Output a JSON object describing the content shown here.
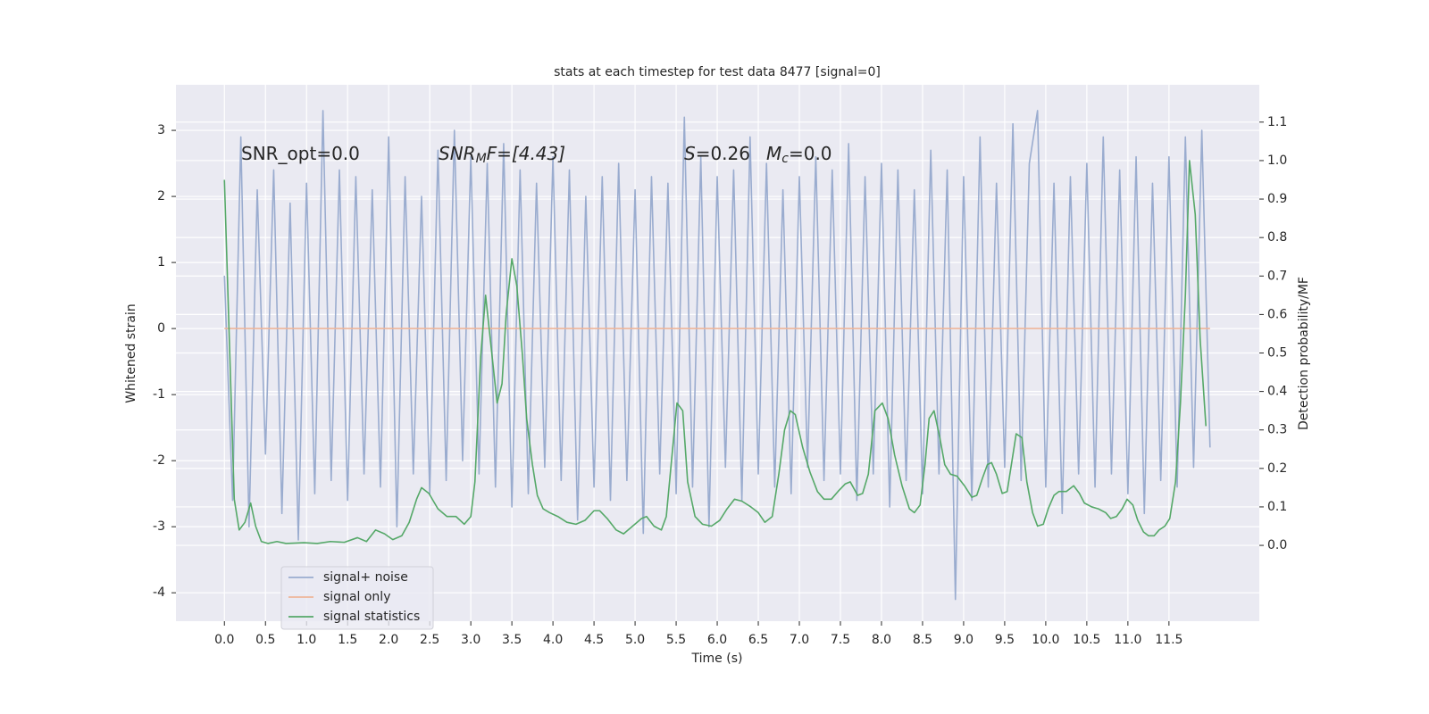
{
  "chart_data": {
    "type": "line",
    "title": "stats at each timestep for test data 8477 [signal=0]",
    "xlabel": "Time (s)",
    "ylabel": "Whitened strain",
    "y2label": "Detection probability/MF",
    "annotations": [
      {
        "parts": [
          "SNR_opt=0.0"
        ]
      },
      {
        "parts": [
          "SNR",
          "M",
          "F=[4.43]"
        ]
      },
      {
        "parts": [
          "S",
          "=0.26"
        ]
      },
      {
        "parts": [
          "M",
          "c",
          "=0.0"
        ]
      }
    ],
    "xlim": [
      -0.59,
      12.6
    ],
    "ylim": [
      -4.43,
      3.69
    ],
    "y2lim": [
      -0.197,
      1.197
    ],
    "xticks": [
      {
        "value": 0,
        "label": "0.0"
      },
      0.5,
      {
        "value": 1,
        "label": "1.0"
      },
      1.5,
      {
        "value": 2,
        "label": "2.0"
      },
      2.5,
      {
        "value": 3,
        "label": "3.0"
      },
      3.5,
      {
        "value": 4,
        "label": "4.0"
      },
      4.5,
      {
        "value": 5,
        "label": "5.0"
      },
      5.5,
      {
        "value": 6,
        "label": "6.0"
      },
      6.5,
      {
        "value": 7,
        "label": "7.0"
      },
      7.5,
      {
        "value": 8,
        "label": "8.0"
      },
      8.5,
      {
        "value": 9,
        "label": "9.0"
      },
      9.5,
      {
        "value": 10,
        "label": "10.0"
      },
      10.5,
      {
        "value": 11,
        "label": "11.0"
      },
      11.5
    ],
    "yticks": [
      -4,
      -3,
      -2,
      -1,
      0,
      1,
      2,
      3
    ],
    "y2ticks": [
      {
        "value": 0,
        "label": "0.0"
      },
      0.1,
      0.2,
      0.3,
      0.4,
      0.5,
      0.6,
      0.7,
      0.8,
      0.9,
      {
        "value": 1,
        "label": "1.0"
      },
      1.1
    ],
    "grid": true,
    "legend": "lower left",
    "series": [
      {
        "name": "signal+ noise",
        "color": "#9aaccf",
        "x": [
          0,
          0.1,
          0.2,
          0.3,
          0.4,
          0.5,
          0.6,
          0.7,
          0.8,
          0.9,
          1,
          1.1,
          1.2,
          1.3,
          1.4,
          1.5,
          1.6,
          1.7,
          1.8,
          1.9,
          2,
          2.1,
          2.2,
          2.3,
          2.4,
          2.5,
          2.6,
          2.7,
          2.8,
          2.9,
          3,
          3.1,
          3.2,
          3.3,
          3.4,
          3.5,
          3.6,
          3.7,
          3.8,
          3.9,
          4,
          4.1,
          4.2,
          4.3,
          4.4,
          4.5,
          4.6,
          4.7,
          4.8,
          4.9,
          5,
          5.1,
          5.2,
          5.3,
          5.4,
          5.5,
          5.6,
          5.7,
          5.8,
          5.9,
          6,
          6.1,
          6.2,
          6.3,
          6.4,
          6.5,
          6.6,
          6.7,
          6.8,
          6.9,
          7,
          7.1,
          7.2,
          7.3,
          7.4,
          7.5,
          7.6,
          7.7,
          7.8,
          7.9,
          8,
          8.1,
          8.2,
          8.3,
          8.4,
          8.5,
          8.6,
          8.7,
          8.8,
          8.9,
          9,
          9.1,
          9.2,
          9.3,
          9.4,
          9.5,
          9.6,
          9.7,
          9.8,
          9.9,
          10,
          10.1,
          10.2,
          10.3,
          10.4,
          10.5,
          10.6,
          10.7,
          10.8,
          10.9,
          11,
          11.1,
          11.2,
          11.3,
          11.4,
          11.5,
          11.6,
          11.7,
          11.8,
          11.9,
          12
        ],
        "values": [
          0.8,
          -2.6,
          2.9,
          -3.0,
          2.1,
          -1.9,
          2.4,
          -2.8,
          1.9,
          -3.2,
          2.2,
          -2.5,
          3.3,
          -2.3,
          2.4,
          -2.6,
          2.3,
          -2.2,
          2.1,
          -2.4,
          2.9,
          -3.0,
          2.3,
          -2.2,
          2.0,
          -2.5,
          2.7,
          -2.3,
          3.0,
          -2.0,
          2.6,
          -2.2,
          2.5,
          -2.4,
          2.8,
          -2.7,
          2.4,
          -2.5,
          2.2,
          -2.1,
          2.6,
          -2.3,
          2.4,
          -2.9,
          2.0,
          -2.4,
          2.3,
          -2.6,
          2.5,
          -2.3,
          2.1,
          -3.1,
          2.3,
          -2.2,
          2.2,
          -2.5,
          3.2,
          -2.4,
          2.6,
          -3.0,
          2.3,
          -2.1,
          2.4,
          -2.6,
          2.9,
          -2.2,
          2.5,
          -2.4,
          2.1,
          -2.5,
          2.3,
          -2.1,
          2.6,
          -2.3,
          2.4,
          -2.2,
          2.8,
          -2.6,
          2.3,
          -2.2,
          2.5,
          -2.7,
          2.4,
          -2.3,
          2.1,
          -2.5,
          2.7,
          -2.2,
          2.4,
          -4.1,
          2.3,
          -2.6,
          2.9,
          -2.4,
          2.2,
          -2.1,
          3.1,
          -2.3,
          2.5,
          3.3,
          -2.4,
          2.2,
          -2.8,
          2.3,
          -2.2,
          2.5,
          -2.4,
          2.9,
          -2.2,
          2.4,
          -2.5,
          2.6,
          -2.8,
          2.2,
          -2.3,
          2.6,
          -2.4,
          2.9,
          -2.1,
          3.0,
          -1.8
        ]
      },
      {
        "name": "signal only",
        "color": "#eeb599",
        "x": [
          0,
          12
        ],
        "values": [
          0,
          0
        ]
      },
      {
        "name": "signal statistics",
        "color": "#55a868",
        "axis": "y2",
        "x": [
          0,
          0.12,
          0.18,
          0.25,
          0.32,
          0.38,
          0.45,
          0.53,
          0.64,
          0.75,
          0.97,
          1.13,
          1.29,
          1.46,
          1.62,
          1.73,
          1.84,
          1.95,
          2.05,
          2.16,
          2.25,
          2.34,
          2.4,
          2.49,
          2.6,
          2.71,
          2.82,
          2.92,
          3.0,
          3.05,
          3.12,
          3.18,
          3.25,
          3.32,
          3.38,
          3.43,
          3.5,
          3.56,
          3.63,
          3.68,
          3.75,
          3.81,
          3.88,
          3.96,
          4.06,
          4.17,
          4.28,
          4.39,
          4.5,
          4.57,
          4.66,
          4.77,
          4.86,
          4.97,
          5.08,
          5.14,
          5.23,
          5.32,
          5.38,
          5.45,
          5.51,
          5.58,
          5.64,
          5.73,
          5.82,
          5.93,
          6.03,
          6.12,
          6.21,
          6.3,
          6.41,
          6.5,
          6.58,
          6.67,
          6.75,
          6.82,
          6.89,
          6.95,
          7.04,
          7.13,
          7.22,
          7.3,
          7.39,
          7.47,
          7.56,
          7.62,
          7.71,
          7.77,
          7.84,
          7.92,
          8.01,
          8.08,
          8.16,
          8.25,
          8.34,
          8.4,
          8.47,
          8.53,
          8.58,
          8.64,
          8.71,
          8.77,
          8.84,
          8.92,
          9.01,
          9.1,
          9.16,
          9.23,
          9.29,
          9.34,
          9.4,
          9.47,
          9.53,
          9.6,
          9.64,
          9.71,
          9.77,
          9.84,
          9.9,
          9.97,
          10.03,
          10.1,
          10.16,
          10.25,
          10.34,
          10.41,
          10.47,
          10.56,
          10.64,
          10.73,
          10.79,
          10.86,
          10.93,
          10.99,
          11.06,
          11.12,
          11.19,
          11.25,
          11.32,
          11.38,
          11.45,
          11.51,
          11.58,
          11.64,
          11.7,
          11.75,
          11.82,
          11.88,
          11.95
        ],
        "values": [
          0.95,
          0.12,
          0.04,
          0.06,
          0.11,
          0.05,
          0.01,
          0.005,
          0.01,
          0.005,
          0.007,
          0.005,
          0.01,
          0.008,
          0.02,
          0.01,
          0.04,
          0.03,
          0.015,
          0.025,
          0.06,
          0.12,
          0.15,
          0.135,
          0.095,
          0.075,
          0.075,
          0.055,
          0.075,
          0.165,
          0.49,
          0.65,
          0.51,
          0.37,
          0.42,
          0.6,
          0.745,
          0.675,
          0.49,
          0.33,
          0.21,
          0.13,
          0.095,
          0.085,
          0.075,
          0.06,
          0.055,
          0.065,
          0.09,
          0.09,
          0.07,
          0.04,
          0.03,
          0.05,
          0.07,
          0.075,
          0.05,
          0.04,
          0.075,
          0.235,
          0.37,
          0.35,
          0.165,
          0.075,
          0.055,
          0.05,
          0.065,
          0.095,
          0.12,
          0.115,
          0.1,
          0.085,
          0.06,
          0.075,
          0.185,
          0.3,
          0.35,
          0.34,
          0.255,
          0.19,
          0.14,
          0.12,
          0.12,
          0.14,
          0.16,
          0.165,
          0.13,
          0.135,
          0.185,
          0.35,
          0.37,
          0.33,
          0.235,
          0.155,
          0.095,
          0.085,
          0.105,
          0.21,
          0.33,
          0.35,
          0.28,
          0.21,
          0.185,
          0.18,
          0.155,
          0.125,
          0.13,
          0.175,
          0.21,
          0.215,
          0.185,
          0.135,
          0.14,
          0.235,
          0.29,
          0.28,
          0.165,
          0.085,
          0.05,
          0.055,
          0.095,
          0.13,
          0.14,
          0.14,
          0.155,
          0.135,
          0.11,
          0.1,
          0.095,
          0.085,
          0.07,
          0.075,
          0.095,
          0.12,
          0.105,
          0.065,
          0.035,
          0.025,
          0.025,
          0.04,
          0.05,
          0.07,
          0.165,
          0.37,
          0.65,
          1.0,
          0.86,
          0.535,
          0.31
        ]
      }
    ]
  }
}
